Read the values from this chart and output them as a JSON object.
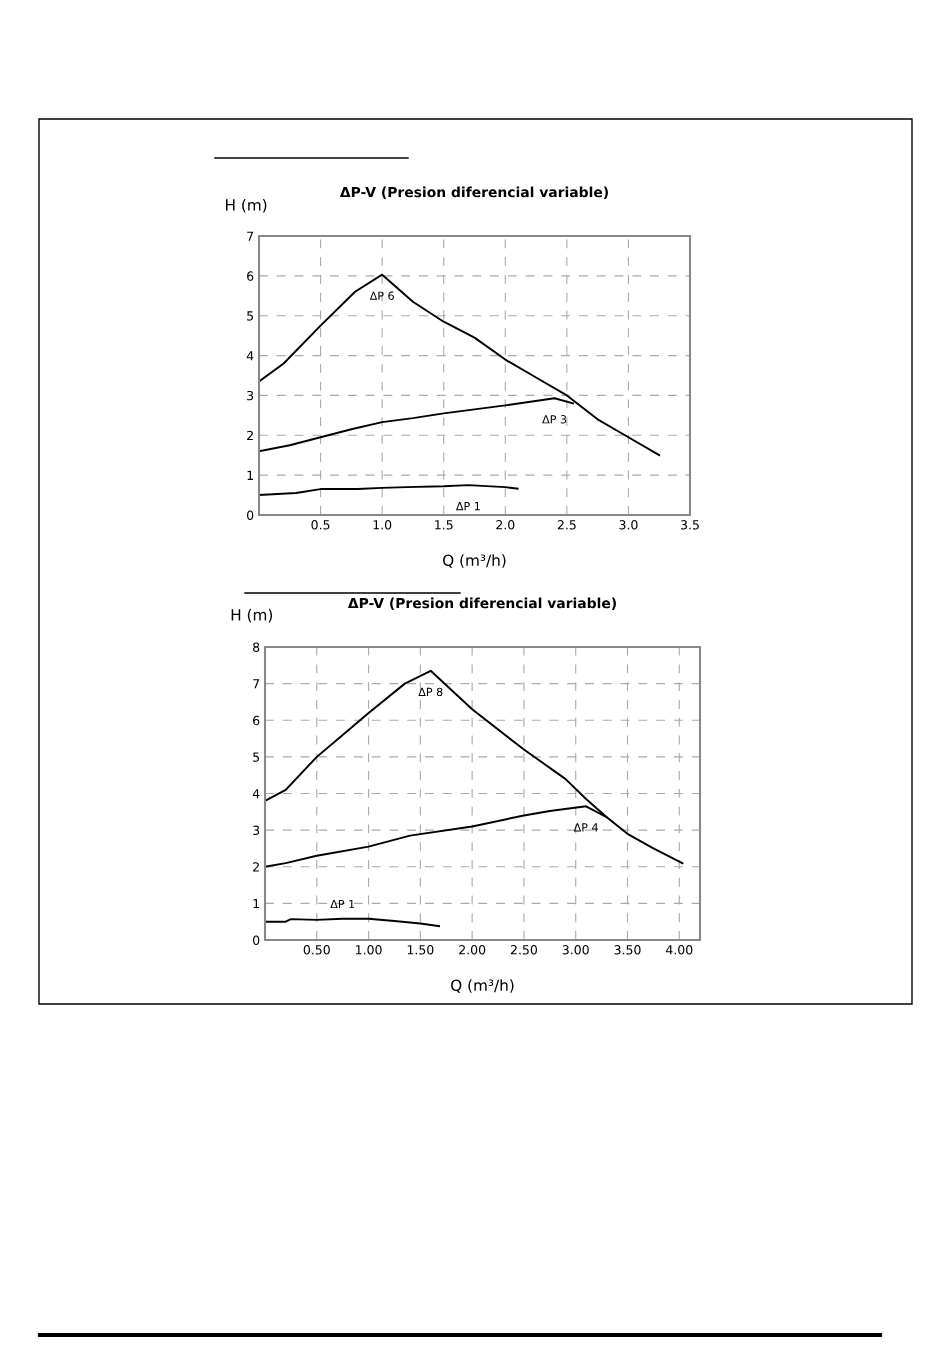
{
  "chart_data": [
    {
      "type": "line",
      "title": "ΔP-V (Presion diferencial variable)",
      "xlabel": "Q (m³/h)",
      "ylabel": "H (m)",
      "xlim": [
        0,
        3.5
      ],
      "xticks": [
        0.5,
        {
          "value": 1,
          "label": "1.0"
        },
        1.5,
        {
          "value": 2,
          "label": "2.0"
        },
        2.5,
        {
          "value": 3,
          "label": "3.0"
        },
        3.5
      ],
      "ylim": [
        0,
        7
      ],
      "yticks": [
        0,
        1,
        2,
        3,
        4,
        5,
        6,
        7
      ],
      "grid": true,
      "legend": false,
      "line_style": "solid",
      "series": [
        {
          "name": "ΔP 6",
          "color": "#000000",
          "x": [
            0,
            0.2,
            0.5,
            0.78,
            1.0,
            1.25,
            1.5,
            1.75,
            2.0,
            2.25,
            2.5,
            2.75,
            3.0,
            3.25
          ],
          "values": [
            3.35,
            3.8,
            4.75,
            5.6,
            6.03,
            5.35,
            4.85,
            4.45,
            3.9,
            3.45,
            3.0,
            2.4,
            1.95,
            1.5
          ]
        },
        {
          "name": "ΔP 3",
          "color": "#000000",
          "x": [
            0,
            0.25,
            0.5,
            0.75,
            1.0,
            1.25,
            1.5,
            1.75,
            2.0,
            2.4,
            2.55
          ],
          "values": [
            1.6,
            1.75,
            1.95,
            2.15,
            2.33,
            2.43,
            2.55,
            2.65,
            2.75,
            2.93,
            2.8
          ]
        },
        {
          "name": "ΔP 1",
          "color": "#000000",
          "x": [
            0,
            0.3,
            0.5,
            0.8,
            1.0,
            1.2,
            1.5,
            1.7,
            2.0,
            2.1
          ],
          "values": [
            0.5,
            0.55,
            0.65,
            0.65,
            0.68,
            0.7,
            0.72,
            0.75,
            0.7,
            0.66
          ]
        }
      ]
    },
    {
      "type": "line",
      "title": "ΔP-V (Presion diferencial variable)",
      "xlabel": "Q (m³/h)",
      "ylabel": "H (m)",
      "xlim": [
        0,
        4.2
      ],
      "xticks": [
        {
          "value": 0.5,
          "label": "0.50"
        },
        {
          "value": 1,
          "label": "1.00"
        },
        {
          "value": 1.5,
          "label": "1.50"
        },
        {
          "value": 2,
          "label": "2.00"
        },
        {
          "value": 2.5,
          "label": "2.50"
        },
        {
          "value": 3,
          "label": "3.00"
        },
        {
          "value": 3.5,
          "label": "3.50"
        },
        {
          "value": 4,
          "label": "4.00"
        }
      ],
      "ylim": [
        0,
        8
      ],
      "yticks": [
        0,
        1,
        2,
        3,
        4,
        5,
        6,
        7,
        8
      ],
      "grid": true,
      "legend": false,
      "line_style": "solid",
      "series": [
        {
          "name": "ΔP 8",
          "color": "#000000",
          "x": [
            0,
            0.2,
            0.5,
            0.75,
            1.0,
            1.35,
            1.6,
            2.0,
            2.5,
            2.9,
            3.1,
            3.3,
            3.5,
            3.75,
            4.03
          ],
          "values": [
            3.8,
            4.1,
            5.0,
            5.6,
            6.2,
            7.0,
            7.35,
            6.3,
            5.2,
            4.4,
            3.85,
            3.35,
            2.9,
            2.5,
            2.1
          ]
        },
        {
          "name": "ΔP 4",
          "color": "#000000",
          "x": [
            0,
            0.2,
            0.5,
            1.0,
            1.4,
            2.0,
            2.5,
            2.75,
            3.1,
            3.3
          ],
          "values": [
            2.0,
            2.1,
            2.3,
            2.55,
            2.85,
            3.1,
            3.4,
            3.52,
            3.65,
            3.35
          ]
        },
        {
          "name": "ΔP 1",
          "color": "#000000",
          "x": [
            0,
            0.2,
            0.25,
            0.5,
            0.75,
            1.0,
            1.25,
            1.5,
            1.68
          ],
          "values": [
            0.5,
            0.5,
            0.57,
            0.55,
            0.58,
            0.58,
            0.52,
            0.45,
            0.38
          ]
        }
      ]
    }
  ]
}
